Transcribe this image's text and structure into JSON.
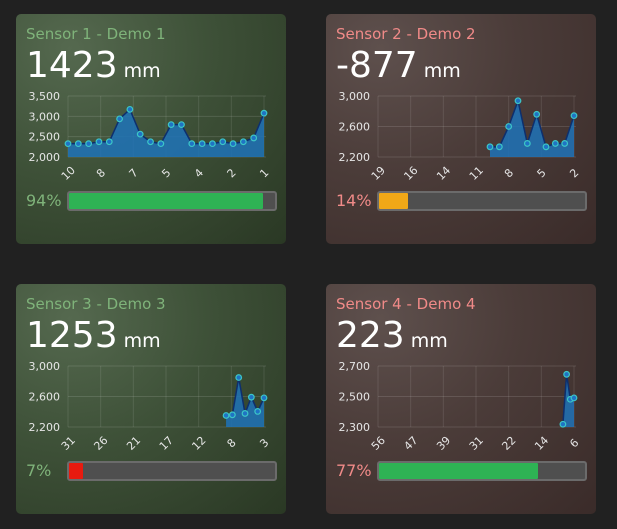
{
  "sensors": [
    {
      "title": "Sensor 1 - Demo 1",
      "value": "1423",
      "unit": "mm",
      "percent": 94,
      "percent_label": "94%",
      "theme": "green",
      "bar_color": "#2eb354",
      "chart_data": {
        "type": "area",
        "x_ticks": [
          "10",
          "8",
          "7",
          "5",
          "4",
          "2",
          "1"
        ],
        "y_ticks": [
          "3,500",
          "3,000",
          "2,500",
          "2,000"
        ],
        "ylim": [
          1950,
          3550
        ],
        "values": [
          2300,
          2300,
          2300,
          2350,
          2350,
          2950,
          3200,
          2550,
          2350,
          2300,
          2800,
          2800,
          2300,
          2300,
          2300,
          2350,
          2300,
          2350,
          2450,
          3100
        ]
      }
    },
    {
      "title": "Sensor 2 - Demo 2",
      "value": "-877",
      "unit": "mm",
      "percent": 14,
      "percent_label": "14%",
      "theme": "red",
      "bar_color": "#f0a817",
      "chart_data": {
        "type": "area",
        "x_ticks": [
          "19",
          "16",
          "14",
          "11",
          "8",
          "5",
          "2"
        ],
        "y_ticks": [
          "3,000",
          "2,600",
          "2,200"
        ],
        "ylim": [
          2150,
          3050
        ],
        "values": [
          null,
          null,
          null,
          null,
          null,
          null,
          null,
          null,
          null,
          null,
          null,
          null,
          2300,
          2300,
          2600,
          2980,
          2350,
          2780,
          2300,
          2350,
          2350,
          2760
        ]
      }
    },
    {
      "title": "Sensor 3 - Demo 3",
      "value": "1253",
      "unit": "mm",
      "percent": 7,
      "percent_label": "7%",
      "theme": "green",
      "bar_color": "#e81a0f",
      "chart_data": {
        "type": "area",
        "x_ticks": [
          "31",
          "26",
          "21",
          "17",
          "12",
          "8",
          "3"
        ],
        "y_ticks": [
          "3,000",
          "2,600",
          "2,200"
        ],
        "ylim": [
          2150,
          3050
        ],
        "values": [
          null,
          null,
          null,
          null,
          null,
          null,
          null,
          null,
          null,
          null,
          null,
          null,
          null,
          null,
          null,
          null,
          null,
          null,
          null,
          null,
          null,
          null,
          null,
          null,
          null,
          2320,
          2330,
          2880,
          2350,
          2590,
          2380,
          2580
        ]
      }
    },
    {
      "title": "Sensor 4 - Demo 4",
      "value": "223",
      "unit": "mm",
      "percent": 77,
      "percent_label": "77%",
      "theme": "red",
      "bar_color": "#2eb354",
      "chart_data": {
        "type": "area",
        "x_ticks": [
          "56",
          "47",
          "39",
          "31",
          "22",
          "14",
          "6"
        ],
        "y_ticks": [
          "2,700",
          "2,500",
          "2,300"
        ],
        "ylim": [
          2280,
          2720
        ],
        "values": [
          null,
          null,
          null,
          null,
          null,
          null,
          null,
          null,
          null,
          null,
          null,
          null,
          null,
          null,
          null,
          null,
          null,
          null,
          null,
          null,
          null,
          null,
          null,
          null,
          null,
          null,
          null,
          null,
          null,
          null,
          null,
          null,
          null,
          null,
          null,
          null,
          null,
          null,
          null,
          null,
          null,
          null,
          null,
          null,
          null,
          null,
          null,
          null,
          null,
          null,
          2300,
          2660,
          2480,
          2490
        ]
      }
    }
  ]
}
